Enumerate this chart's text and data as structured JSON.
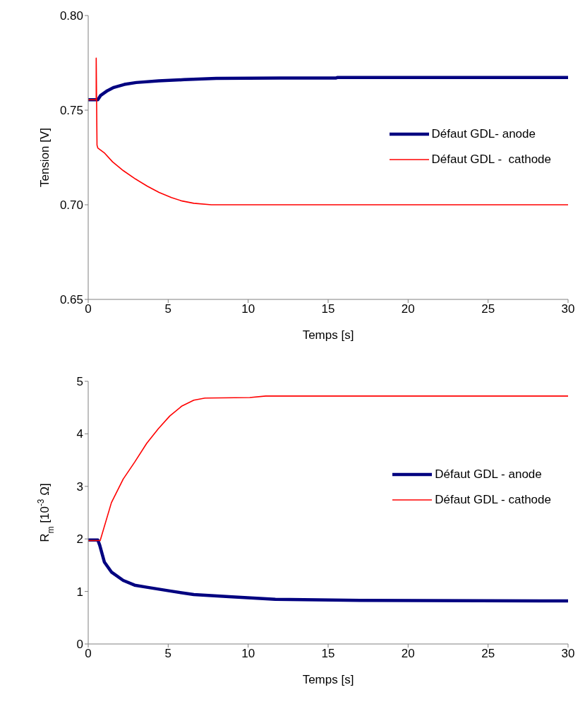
{
  "chart_data": [
    {
      "type": "line",
      "xlabel": "Temps [s]",
      "ylabel": "Tension [V]",
      "xlim": [
        0,
        30
      ],
      "xticks": [
        0,
        5,
        10,
        15,
        20,
        25,
        30
      ],
      "ylim": [
        0.65,
        0.8
      ],
      "yticks": [
        {
          "value": 0.65,
          "label": "0.65"
        },
        {
          "value": 0.7,
          "label": "0.70"
        },
        {
          "value": 0.75,
          "label": "0.75"
        },
        {
          "value": 0.8,
          "label": "0.80"
        }
      ],
      "grid": false,
      "legend": "right",
      "marker": "none",
      "line_style": "solid",
      "series": [
        {
          "name": "Défaut GDL- anode",
          "color": "#000080",
          "x": [
            0,
            0.6,
            0.78,
            1.2,
            1.6,
            2.26,
            3,
            4.4,
            6,
            8,
            12,
            15.5,
            15.6,
            20,
            30
          ],
          "values": [
            0.7555,
            0.7555,
            0.7578,
            0.7603,
            0.762,
            0.7636,
            0.7646,
            0.7655,
            0.7661,
            0.7668,
            0.767,
            0.767,
            0.7673,
            0.7673,
            0.7673
          ]
        },
        {
          "name": "Défaut GDL -  cathode",
          "color": "#ff0000",
          "x": [
            0,
            0.5,
            0.5,
            0.55,
            0.6,
            1,
            1.52,
            2.2,
            2.96,
            3.7,
            4.43,
            5.2,
            5.87,
            6.6,
            7.7,
            10,
            20,
            30
          ],
          "values": [
            0.7555,
            0.7555,
            0.7775,
            0.7315,
            0.73,
            0.7275,
            0.7227,
            0.718,
            0.7136,
            0.7098,
            0.7065,
            0.7038,
            0.702,
            0.7008,
            0.7,
            0.7,
            0.7,
            0.7
          ]
        }
      ]
    },
    {
      "type": "line",
      "xlabel": "Temps [s]",
      "ylabel": "R$_{m}$ [10$^{-3}$ Ω]",
      "xlim": [
        0,
        30
      ],
      "xticks": [
        0,
        5,
        10,
        15,
        20,
        25,
        30
      ],
      "ylim": [
        0,
        5
      ],
      "yticks": [
        0,
        1,
        2,
        3,
        4,
        5
      ],
      "grid": false,
      "legend": "right",
      "marker": "none",
      "line_style": "solid",
      "series": [
        {
          "name": "Défaut GDL - anode",
          "color": "#000080",
          "x": [
            0,
            0.6,
            0.72,
            1.01,
            1.45,
            2.19,
            2.9,
            3.66,
            5.1,
            6.6,
            8.8,
            11.7,
            17,
            30
          ],
          "values": [
            1.98,
            1.98,
            1.88,
            1.56,
            1.37,
            1.21,
            1.12,
            1.08,
            1.01,
            0.94,
            0.9,
            0.85,
            0.83,
            0.82
          ]
        },
        {
          "name": "Défaut GDL - cathode",
          "color": "#ff0000",
          "x": [
            0,
            0.57,
            0.75,
            1.45,
            2.19,
            2.9,
            3.66,
            4.39,
            5.1,
            5.86,
            6.6,
            7.3,
            10.1,
            11.1,
            30
          ],
          "values": [
            1.97,
            1.97,
            1.97,
            2.69,
            3.14,
            3.46,
            3.82,
            4.1,
            4.34,
            4.53,
            4.64,
            4.68,
            4.69,
            4.72,
            4.72
          ]
        }
      ]
    }
  ]
}
